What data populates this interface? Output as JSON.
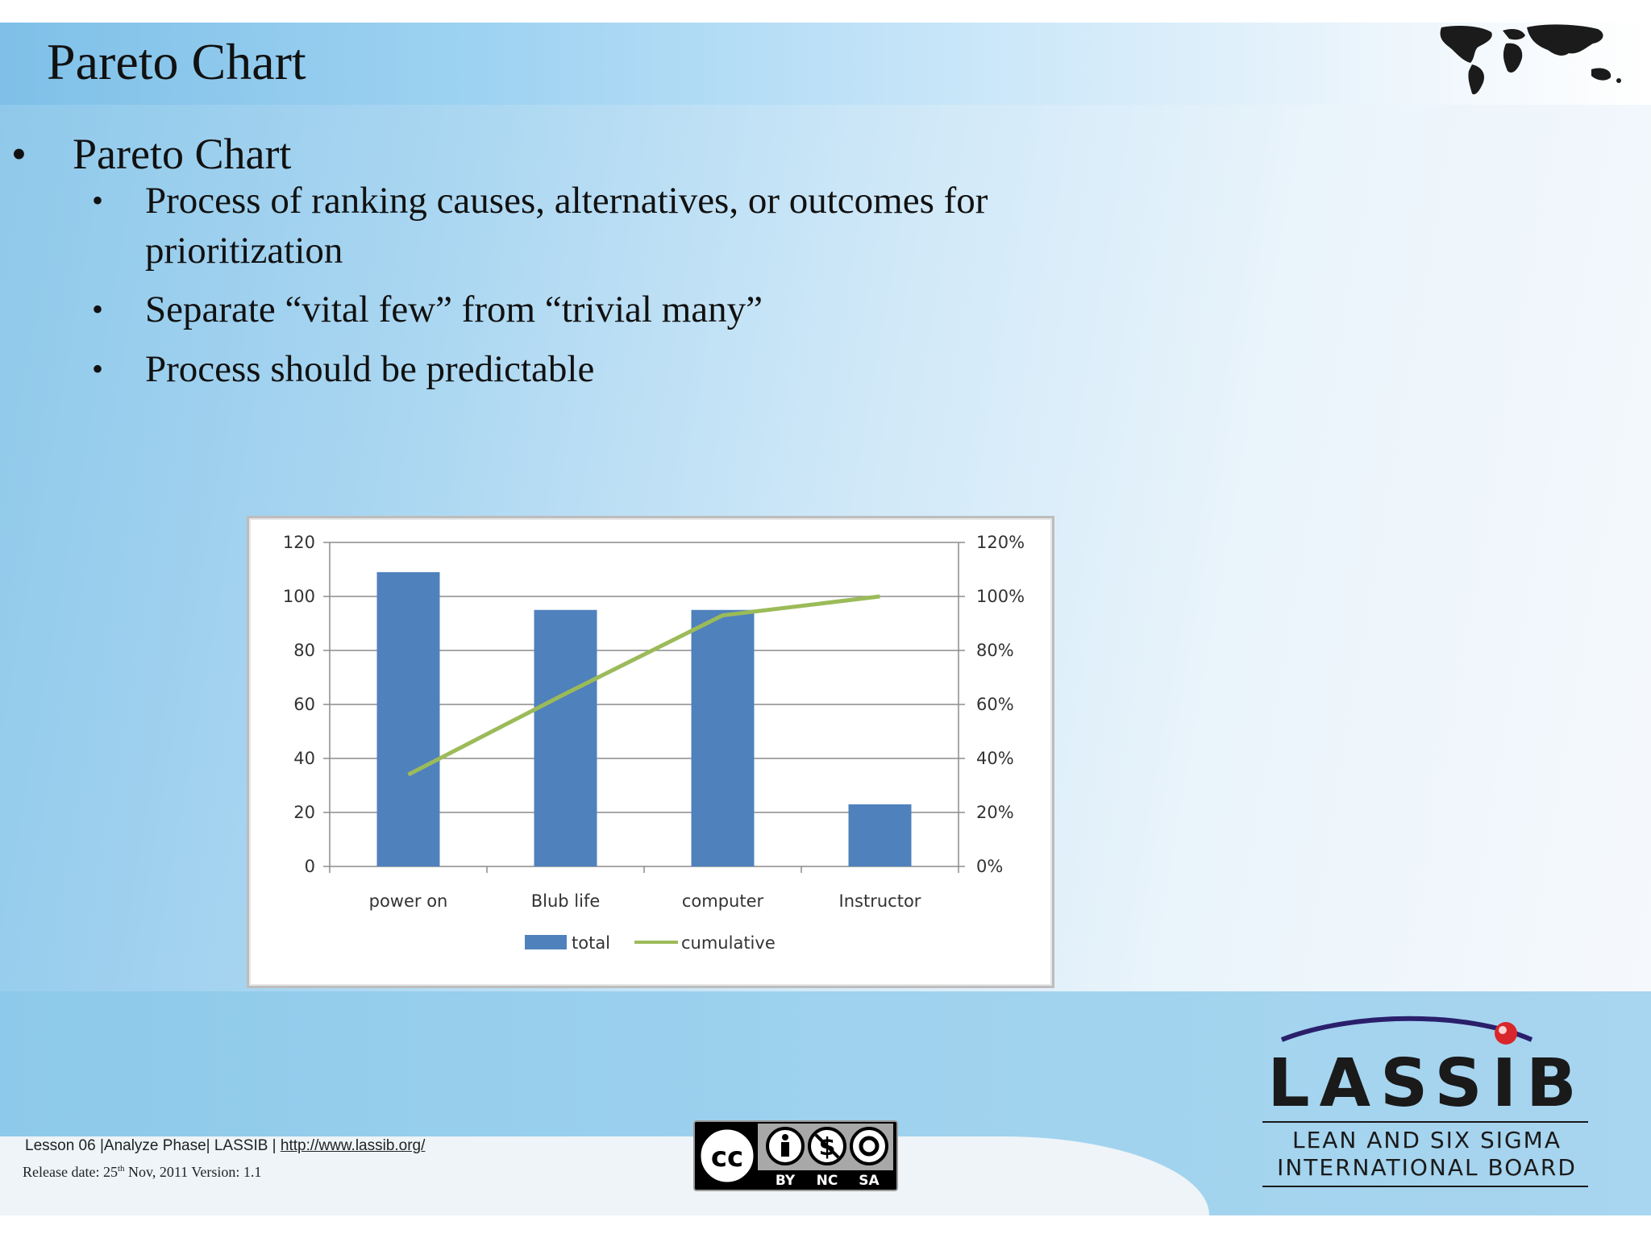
{
  "slide": {
    "title": "Pareto Chart",
    "bullets": [
      {
        "text": "Pareto Chart",
        "children": [
          {
            "line1": "Process of ranking causes, alternatives, or outcomes for",
            "line2": "prioritization"
          },
          {
            "line1": "Separate “vital few” from “trivial many”"
          },
          {
            "line1": "Process should be predictable"
          }
        ]
      }
    ],
    "bullet_char": "•"
  },
  "chart_data": {
    "type": "bar",
    "categories": [
      "power on",
      "Blub life",
      "computer",
      "Instructor"
    ],
    "series": [
      {
        "name": "total",
        "kind": "bar",
        "axis": "left",
        "color": "#4f81bd",
        "values": [
          109,
          95,
          95,
          23
        ]
      },
      {
        "name": "cumulative",
        "kind": "line",
        "axis": "right",
        "color": "#9bbb59",
        "values": [
          0.34,
          0.64,
          0.93,
          1.0
        ]
      }
    ],
    "ylim_left": [
      0,
      120
    ],
    "yticks_left": [
      "0",
      "20",
      "40",
      "60",
      "80",
      "100",
      "120"
    ],
    "ylim_right": [
      0,
      1.2
    ],
    "yticks_right": [
      "0%",
      "20%",
      "40%",
      "60%",
      "80%",
      "100%",
      "120%"
    ],
    "grid": true,
    "legend_position": "bottom"
  },
  "footer": {
    "lesson": "Lesson 06 |Analyze  Phase| LASSIB | ",
    "url": "http://www.lassib.org/",
    "release_prefix": "Release date: 25",
    "release_sup": "th",
    "release_suffix": " Nov,  2011  Version: 1.1",
    "cc_labels": [
      "BY",
      "NC",
      "SA"
    ]
  },
  "logo": {
    "name": "LASSIB",
    "line1": "LEAN AND SIX SIGMA",
    "line2": "INTERNATIONAL BOARD"
  },
  "colors": {
    "bar": "#4f81bd",
    "line": "#9bbb59",
    "background_blue": "#8ec8ea"
  }
}
